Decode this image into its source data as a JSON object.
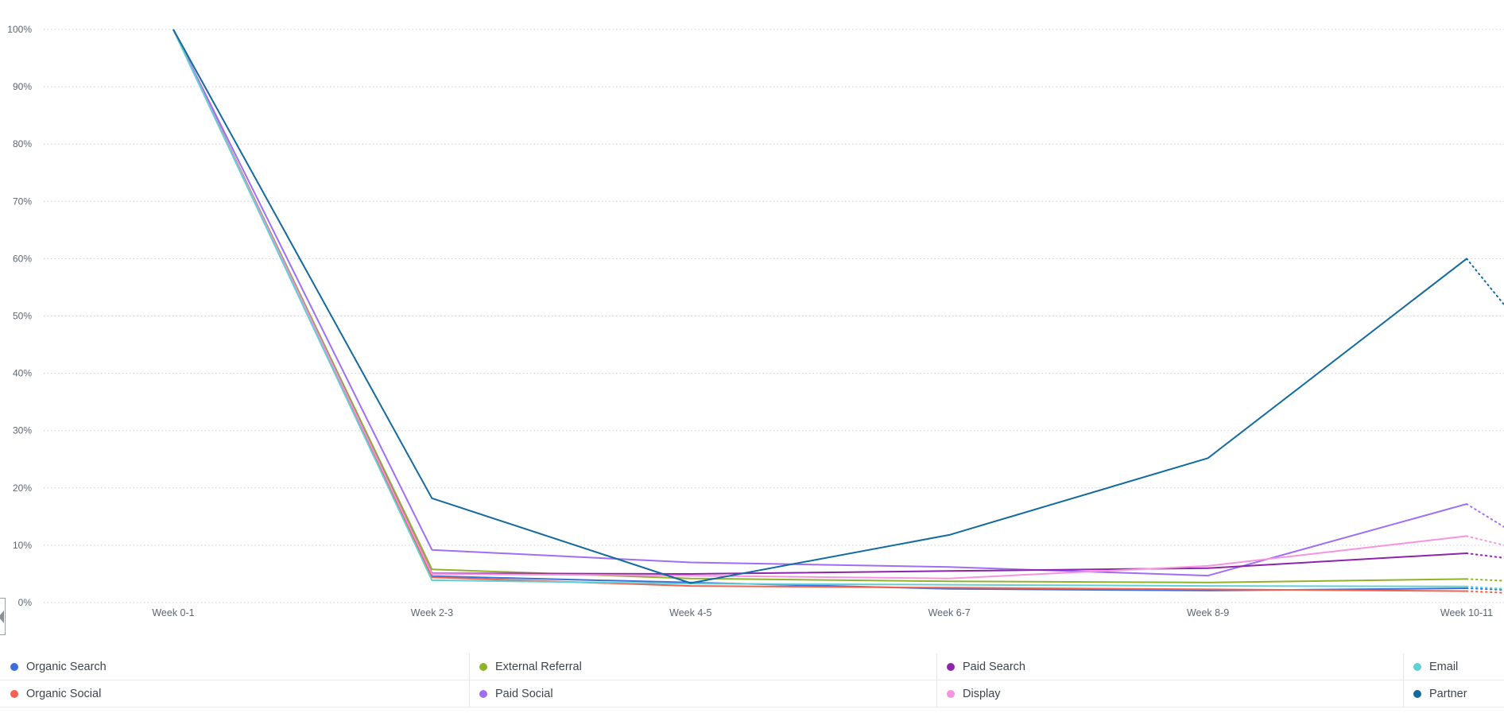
{
  "chart_data": {
    "type": "line",
    "title": "",
    "xlabel": "",
    "ylabel": "",
    "ylim": [
      0,
      100
    ],
    "grid": "dotted-horizontal",
    "legend_position": "bottom",
    "x_categories": [
      "Week 0-1",
      "Week 2-3",
      "Week 4-5",
      "Week 6-7",
      "Week 8-9",
      "Week 10-11"
    ],
    "y_tick_labels": [
      "0%",
      "10%",
      "20%",
      "30%",
      "40%",
      "50%",
      "60%",
      "70%",
      "80%",
      "90%",
      "100%"
    ],
    "projection_note": "each series continues past Week 10-11 as a dotted projection clipped at the right edge",
    "series": [
      {
        "name": "Organic Search",
        "color": "#3b70d8",
        "values": [
          100,
          4.6,
          3.5,
          2.4,
          2.1,
          2.5
        ],
        "projection": 2.2
      },
      {
        "name": "Organic Social",
        "color": "#f4614e",
        "values": [
          100,
          4.4,
          2.9,
          2.6,
          2.3,
          2.0
        ],
        "projection": 1.7
      },
      {
        "name": "External Referral",
        "color": "#8fb32b",
        "values": [
          100,
          5.8,
          4.2,
          3.7,
          3.5,
          4.1
        ],
        "projection": 3.8
      },
      {
        "name": "Paid Social",
        "color": "#a06ef5",
        "values": [
          100,
          9.2,
          7.0,
          6.2,
          4.7,
          17.2
        ],
        "projection": 13.2
      },
      {
        "name": "Paid Search",
        "color": "#8e24aa",
        "values": [
          100,
          5.1,
          5.0,
          5.5,
          6.0,
          8.6
        ],
        "projection": 7.8
      },
      {
        "name": "Display",
        "color": "#f794df",
        "values": [
          100,
          5.0,
          4.7,
          4.2,
          6.4,
          11.6
        ],
        "projection": 10.0
      },
      {
        "name": "Email",
        "color": "#62cfd4",
        "values": [
          100,
          3.9,
          3.3,
          3.1,
          2.9,
          2.8
        ],
        "projection": 2.4
      },
      {
        "name": "Partner",
        "color": "#136a9f",
        "values": [
          100,
          18.2,
          3.4,
          11.8,
          25.2,
          60.0
        ],
        "projection": 52.0
      }
    ],
    "legend_row_major_order": [
      "Organic Search",
      "External Referral",
      "Paid Search",
      "Email",
      "Organic Social",
      "Paid Social",
      "Display",
      "Partner"
    ]
  },
  "scroll_button": {
    "icon": "chevron-left"
  }
}
